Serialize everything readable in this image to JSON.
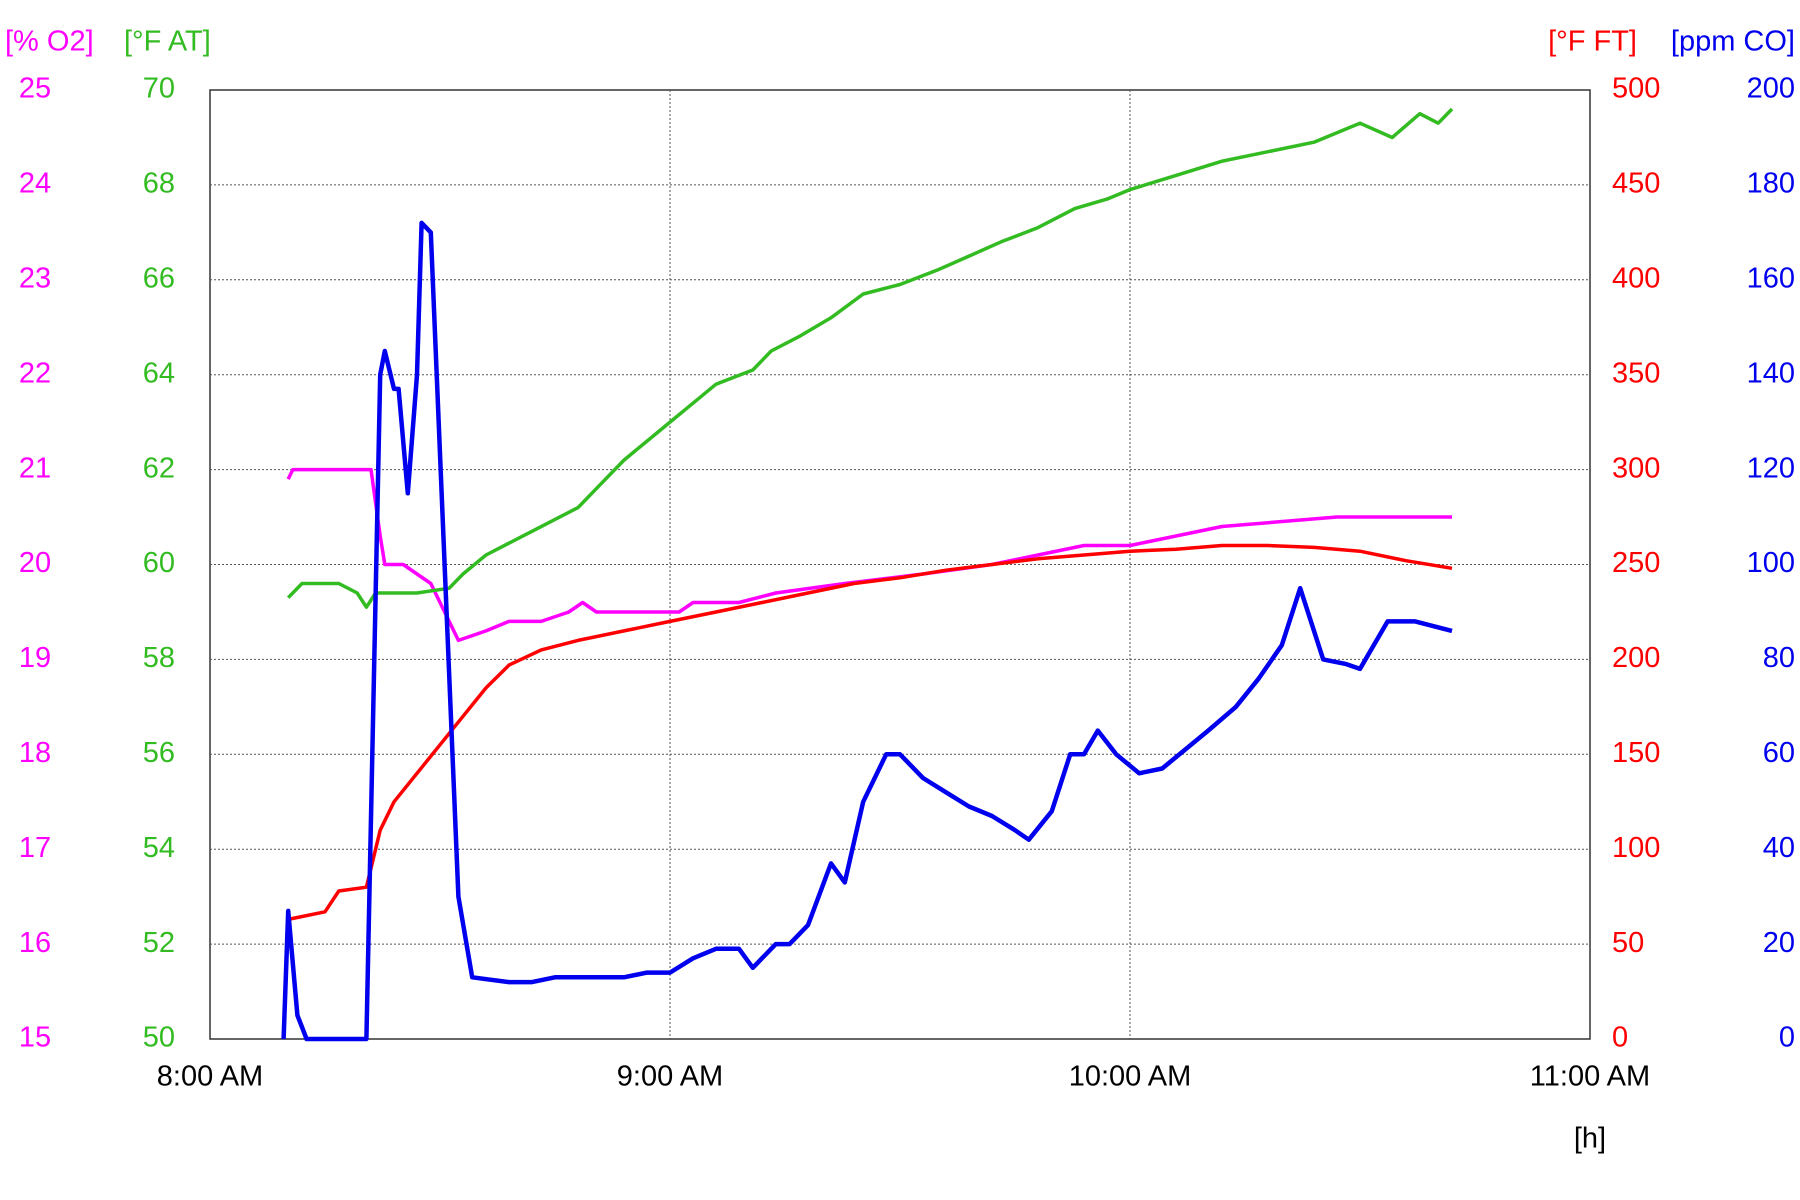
{
  "chart_data": {
    "type": "line",
    "grid": true,
    "xlabel": "[h]",
    "xlim": [
      8,
      11
    ],
    "xticks": [
      {
        "value": 8,
        "label": "8:00 AM"
      },
      {
        "value": 9,
        "label": "9:00 AM"
      },
      {
        "value": 10,
        "label": "10:00 AM"
      },
      {
        "value": 11,
        "label": "11:00 AM"
      }
    ],
    "ylabel": "[% O2]",
    "ylim": [
      15,
      25
    ],
    "yticks": [
      15,
      16,
      17,
      18,
      19,
      20,
      21,
      22,
      23,
      24,
      25
    ],
    "y2label": "[°F AT]",
    "y2lim": [
      50,
      70
    ],
    "y2ticks": [
      50,
      52,
      54,
      56,
      58,
      60,
      62,
      64,
      66,
      68,
      70
    ],
    "y3label": "[°F FT]",
    "y3lim": [
      0,
      500
    ],
    "y3ticks": [
      0,
      50,
      100,
      150,
      200,
      250,
      300,
      350,
      400,
      450,
      500
    ],
    "y4label": "[ppm CO]",
    "y4lim": [
      0,
      200
    ],
    "y4ticks": [
      0,
      20,
      40,
      60,
      80,
      100,
      120,
      140,
      160,
      180,
      200
    ],
    "series": [
      {
        "name": "% O2",
        "axis": "y",
        "color": "#ff00ff",
        "x": [
          8.17,
          8.18,
          8.35,
          8.37,
          8.38,
          8.42,
          8.48,
          8.54,
          8.6,
          8.65,
          8.72,
          8.78,
          8.81,
          8.84,
          9.02,
          9.05,
          9.15,
          9.23,
          9.38,
          9.55,
          9.7,
          9.8,
          9.9,
          10.0,
          10.1,
          10.2,
          10.45,
          10.7
        ],
        "values": [
          20.9,
          21,
          21,
          20.3,
          20,
          20,
          19.8,
          19.2,
          19.3,
          19.4,
          19.4,
          19.5,
          19.6,
          19.5,
          19.5,
          19.6,
          19.6,
          19.7,
          19.8,
          19.9,
          20.0,
          20.1,
          20.2,
          20.2,
          20.3,
          20.4,
          20.5,
          20.5
        ]
      },
      {
        "name": "°F AT",
        "axis": "y2",
        "color": "#33bb22",
        "x": [
          8.17,
          8.2,
          8.28,
          8.32,
          8.34,
          8.36,
          8.45,
          8.52,
          8.55,
          8.6,
          8.7,
          8.8,
          8.85,
          8.9,
          8.95,
          9.0,
          9.05,
          9.1,
          9.18,
          9.22,
          9.28,
          9.35,
          9.42,
          9.5,
          9.58,
          9.65,
          9.72,
          9.8,
          9.88,
          9.95,
          10.0,
          10.1,
          10.2,
          10.3,
          10.4,
          10.5,
          10.57,
          10.63,
          10.67,
          10.7
        ],
        "values": [
          59.3,
          59.6,
          59.6,
          59.4,
          59.1,
          59.4,
          59.4,
          59.5,
          59.8,
          60.2,
          60.7,
          61.2,
          61.7,
          62.2,
          62.6,
          63.0,
          63.4,
          63.8,
          64.1,
          64.5,
          64.8,
          65.2,
          65.7,
          65.9,
          66.2,
          66.5,
          66.8,
          67.1,
          67.5,
          67.7,
          67.9,
          68.2,
          68.5,
          68.7,
          68.9,
          69.3,
          69.0,
          69.5,
          69.3,
          69.6
        ]
      },
      {
        "name": "°F FT",
        "axis": "y3",
        "color": "#ff0000",
        "x": [
          8.17,
          8.25,
          8.28,
          8.34,
          8.37,
          8.4,
          8.45,
          8.5,
          8.55,
          8.6,
          8.65,
          8.72,
          8.8,
          8.9,
          9.0,
          9.1,
          9.2,
          9.3,
          9.4,
          9.5,
          9.6,
          9.7,
          9.8,
          9.9,
          10.0,
          10.1,
          10.2,
          10.3,
          10.4,
          10.5,
          10.6,
          10.7
        ],
        "values": [
          63,
          67,
          78,
          80,
          110,
          125,
          140,
          155,
          170,
          185,
          197,
          205,
          210,
          215,
          220,
          225,
          230,
          235,
          240,
          243,
          247,
          250,
          253,
          255,
          257,
          258,
          260,
          260,
          259,
          257,
          252,
          248
        ]
      },
      {
        "name": "ppm CO",
        "axis": "y4",
        "color": "#0000ee",
        "x": [
          8.16,
          8.17,
          8.19,
          8.21,
          8.34,
          8.37,
          8.38,
          8.4,
          8.41,
          8.43,
          8.45,
          8.46,
          8.48,
          8.51,
          8.54,
          8.57,
          8.65,
          8.7,
          8.75,
          8.8,
          8.9,
          8.95,
          9.0,
          9.05,
          9.1,
          9.15,
          9.18,
          9.23,
          9.26,
          9.3,
          9.35,
          9.38,
          9.42,
          9.47,
          9.5,
          9.55,
          9.6,
          9.65,
          9.7,
          9.75,
          9.78,
          9.83,
          9.87,
          9.9,
          9.93,
          9.97,
          10.02,
          10.07,
          10.17,
          10.23,
          10.28,
          10.33,
          10.37,
          10.42,
          10.47,
          10.5,
          10.56,
          10.62,
          10.7
        ],
        "values": [
          0,
          27,
          5,
          0,
          0,
          140,
          145,
          137,
          137,
          115,
          140,
          172,
          170,
          100,
          30,
          13,
          12,
          12,
          13,
          13,
          13,
          14,
          14,
          17,
          19,
          19,
          15,
          20,
          20,
          24,
          37,
          33,
          50,
          60,
          60,
          55,
          52,
          49,
          47,
          44,
          42,
          48,
          60,
          60,
          65,
          60,
          56,
          57,
          65,
          70,
          76,
          83,
          95,
          80,
          79,
          78,
          88,
          88,
          86
        ]
      }
    ]
  }
}
